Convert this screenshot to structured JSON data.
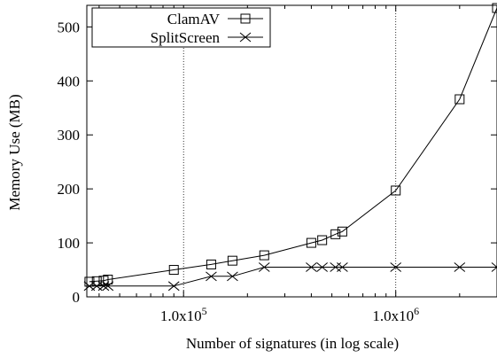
{
  "chart_data": {
    "type": "line",
    "title": "",
    "xlabel": "Number of signatures (in log scale)",
    "ylabel": "Memory Use (MB)",
    "x_scale": "log",
    "xlim": [
      35000,
      3000000
    ],
    "ylim": [
      0,
      540
    ],
    "x_ticks": [
      {
        "value": 100000,
        "mantissa": "1.0x10",
        "exponent": "5"
      },
      {
        "value": 1000000,
        "mantissa": "1.0x10",
        "exponent": "6"
      }
    ],
    "y_ticks": [
      0,
      100,
      200,
      300,
      400,
      500
    ],
    "vertical_reference_lines": [
      100000,
      1000000
    ],
    "legend_position": "top-left",
    "series": [
      {
        "name": "ClamAV",
        "marker": "square",
        "x": [
          36000,
          39000,
          42000,
          44000,
          90000,
          135000,
          170000,
          240000,
          400000,
          450000,
          520000,
          560000,
          1000000,
          2000000,
          3000000
        ],
        "y": [
          28,
          29,
          30,
          32,
          50,
          60,
          67,
          77,
          100,
          105,
          116,
          121,
          197,
          366,
          535
        ]
      },
      {
        "name": "SplitScreen",
        "marker": "x",
        "x": [
          36000,
          39000,
          42000,
          44000,
          90000,
          135000,
          170000,
          240000,
          400000,
          450000,
          520000,
          560000,
          1000000,
          2000000,
          3000000
        ],
        "y": [
          20,
          20,
          20,
          20,
          20,
          38,
          38,
          55,
          55,
          55,
          55,
          55,
          55,
          55,
          55
        ]
      }
    ]
  }
}
